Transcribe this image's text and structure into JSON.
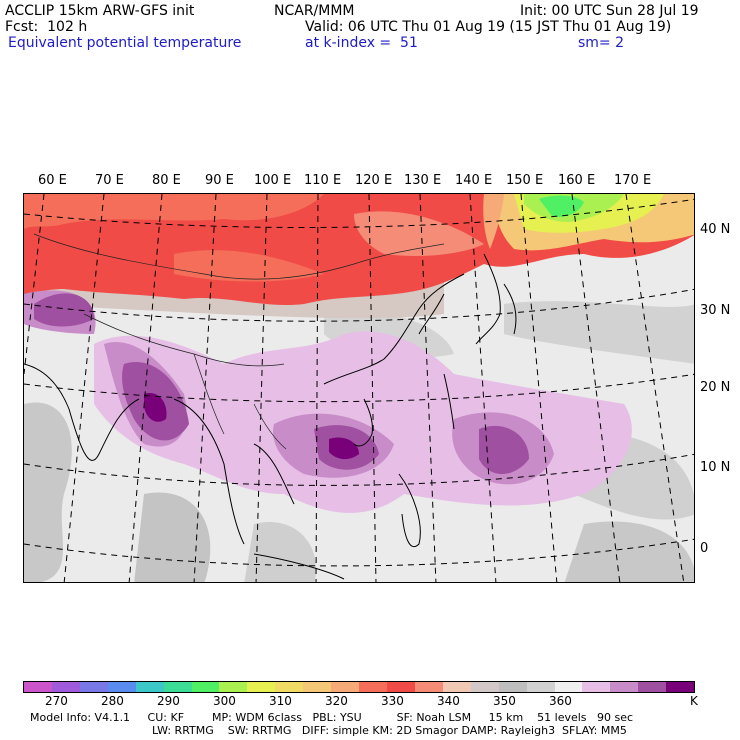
{
  "header": {
    "line1_left": "ACCLIP 15km ARW-GFS init",
    "line1_center": "NCAR/MMM",
    "line1_right": "Init: 00 UTC Sun 28 Jul 19",
    "line2_left": "Fcst:  102 h",
    "line2_right": "Valid: 06 UTC Thu 01 Aug 19 (15 JST Thu 01 Aug 19)",
    "line3_left": "Equivalent potential temperature",
    "line3_center": "at k-index =  51",
    "line3_right": "sm= 2"
  },
  "map": {
    "lon_labels": [
      "60 E",
      "70 E",
      "80 E",
      "90 E",
      "100 E",
      "110 E",
      "120 E",
      "130 E",
      "140 E",
      "150 E",
      "160 E",
      "170 E"
    ],
    "lat_labels": [
      "40 N",
      "30 N",
      "20 N",
      "10 N",
      "0"
    ]
  },
  "colorbar": {
    "colors": [
      "#cc55cc",
      "#a05adc",
      "#7878e6",
      "#5a8cf0",
      "#3cc8c8",
      "#3cdc96",
      "#50f064",
      "#aaf050",
      "#e6f050",
      "#f0dc64",
      "#f5c878",
      "#f5aa78",
      "#f56e5a",
      "#f04b46",
      "#f58c78",
      "#f0c8b4",
      "#d2c8c8",
      "#bebebe",
      "#d2d2d2",
      "#f0f0f0",
      "#e6bee6",
      "#c88cc8",
      "#a050a0",
      "#780078"
    ],
    "tick_labels": [
      "270",
      "280",
      "290",
      "300",
      "310",
      "320",
      "330",
      "340",
      "350",
      "360"
    ],
    "unit": "K"
  },
  "footer": {
    "line1": "Model Info: V4.1.1     CU: KF        MP: WDM 6class   PBL: YSU          SF: Noah LSM     15 km    51 levels   90 sec",
    "line2": "LW: RRTMG    SW: RRTMG   DIFF: simple KM: 2D Smagor DAMP: Rayleigh3  SFLAY: MM5"
  }
}
